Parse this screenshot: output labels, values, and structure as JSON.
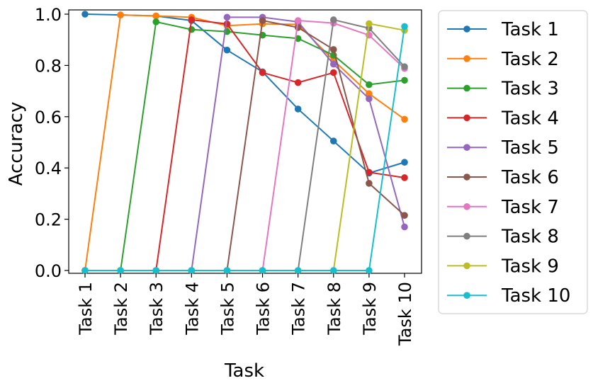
{
  "chart_data": {
    "type": "line",
    "xlabel": "Task",
    "ylabel": "Accuracy",
    "categories": [
      "Task 1",
      "Task 2",
      "Task 3",
      "Task 4",
      "Task 5",
      "Task 6",
      "Task 7",
      "Task 8",
      "Task 9",
      "Task 10"
    ],
    "ylim": [
      0,
      1.0
    ],
    "yticks": [
      "0.0",
      "0.2",
      "0.4",
      "0.6",
      "0.8",
      "1.0"
    ],
    "legend_position": "outside-right",
    "grid": false,
    "series": [
      {
        "name": "Task 1",
        "color": "#1f77b4",
        "values": [
          1.0,
          0.997,
          0.993,
          0.975,
          0.86,
          0.775,
          0.63,
          0.505,
          0.38,
          0.422
        ]
      },
      {
        "name": "Task 2",
        "color": "#ff7f0e",
        "values": [
          0.0,
          0.997,
          0.993,
          0.988,
          0.955,
          0.962,
          0.96,
          0.82,
          0.69,
          0.59
        ]
      },
      {
        "name": "Task 3",
        "color": "#2ca02c",
        "values": [
          0.0,
          0.0,
          0.97,
          0.94,
          0.932,
          0.918,
          0.905,
          0.84,
          0.725,
          0.742
        ]
      },
      {
        "name": "Task 4",
        "color": "#d62728",
        "values": [
          0.0,
          0.0,
          0.0,
          0.978,
          0.962,
          0.772,
          0.733,
          0.772,
          0.383,
          0.362
        ]
      },
      {
        "name": "Task 5",
        "color": "#9467bd",
        "values": [
          0.0,
          0.0,
          0.0,
          0.0,
          0.988,
          0.988,
          0.97,
          0.805,
          0.67,
          0.17
        ]
      },
      {
        "name": "Task 6",
        "color": "#8c564b",
        "values": [
          0.0,
          0.0,
          0.0,
          0.0,
          0.0,
          0.975,
          0.948,
          0.862,
          0.34,
          0.215
        ]
      },
      {
        "name": "Task 7",
        "color": "#e377c2",
        "values": [
          0.0,
          0.0,
          0.0,
          0.0,
          0.0,
          0.0,
          0.975,
          0.965,
          0.918,
          0.788
        ]
      },
      {
        "name": "Task 8",
        "color": "#7f7f7f",
        "values": [
          0.0,
          0.0,
          0.0,
          0.0,
          0.0,
          0.0,
          0.0,
          0.978,
          0.945,
          0.795
        ]
      },
      {
        "name": "Task 9",
        "color": "#bcbd22",
        "values": [
          0.0,
          0.0,
          0.0,
          0.0,
          0.0,
          0.0,
          0.0,
          0.0,
          0.963,
          0.937
        ]
      },
      {
        "name": "Task 10",
        "color": "#17becf",
        "values": [
          0.0,
          0.0,
          0.0,
          0.0,
          0.0,
          0.0,
          0.0,
          0.0,
          0.0,
          0.952
        ]
      }
    ]
  }
}
